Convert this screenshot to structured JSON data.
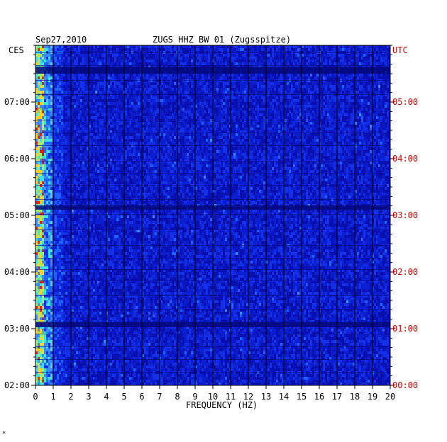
{
  "header": {
    "date": "Sep27,2010",
    "station": "ZUGS HHZ BW 01 (Zugsspitze)"
  },
  "left_zone": "CES",
  "right_zone": "UTC",
  "footer_mark": "*",
  "chart_data": {
    "type": "heatmap",
    "title": "ZUGS HHZ BW 01 (Zugsspitze)",
    "subtitle": "Sep27,2010",
    "xlabel": "FREQUENCY (HZ)",
    "ylabel": "",
    "xlim": [
      0,
      20
    ],
    "x_ticks": [
      "0",
      "1",
      "2",
      "3",
      "4",
      "5",
      "6",
      "7",
      "8",
      "9",
      "10",
      "11",
      "12",
      "13",
      "14",
      "15",
      "16",
      "17",
      "18",
      "19",
      "20"
    ],
    "y_ticks_left": [
      "07:00",
      "06:00",
      "05:00",
      "04:00",
      "03:00",
      "02:00"
    ],
    "y_ticks_right": [
      "05:00",
      "04:00",
      "03:00",
      "02:00",
      "01:00",
      "00:00"
    ],
    "y_time_range_utc": [
      "00:00",
      "06:00"
    ],
    "colors": {
      "low": "#0a0fb0",
      "mid": "#1e63ff",
      "high": "#40e0e0",
      "peak": "#ffd020",
      "max": "#e02010",
      "gap": "#05087a"
    },
    "description_energy": "highest energy below 1 Hz across all rows",
    "gap_rows_utc": [
      "05:36",
      "03:07",
      "01:00"
    ]
  }
}
